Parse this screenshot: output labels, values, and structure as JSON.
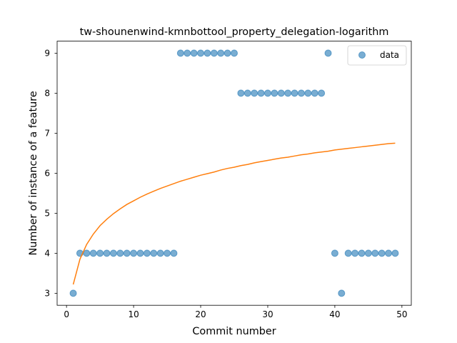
{
  "chart_data": {
    "type": "scatter",
    "title": "tw-shounenwind-kmnbottool_property_delegation-logarithm",
    "xlabel": "Commit number",
    "ylabel": "Number of instance of a feature",
    "xlim": [
      -1.4,
      51.4
    ],
    "ylim": [
      2.7,
      9.3
    ],
    "xticks": [
      0,
      10,
      20,
      30,
      40,
      50
    ],
    "yticks": [
      3,
      4,
      5,
      6,
      7,
      8,
      9
    ],
    "grid": false,
    "legend_position": "upper right",
    "series": [
      {
        "name": "data",
        "kind": "scatter",
        "color": "#1f77b4",
        "x": [
          1,
          2,
          3,
          4,
          5,
          6,
          7,
          8,
          9,
          10,
          11,
          12,
          13,
          14,
          15,
          16,
          17,
          18,
          19,
          20,
          21,
          22,
          23,
          24,
          25,
          26,
          27,
          28,
          29,
          30,
          31,
          32,
          33,
          34,
          35,
          36,
          37,
          38,
          39,
          40,
          41,
          42,
          43,
          44,
          45,
          46,
          47,
          48,
          49
        ],
        "y": [
          3,
          4,
          4,
          4,
          4,
          4,
          4,
          4,
          4,
          4,
          4,
          4,
          4,
          4,
          4,
          4,
          9,
          9,
          9,
          9,
          9,
          9,
          9,
          9,
          9,
          8,
          8,
          8,
          8,
          8,
          8,
          8,
          8,
          8,
          8,
          8,
          8,
          8,
          9,
          4,
          3,
          4,
          4,
          4,
          4,
          4,
          4,
          4,
          4
        ]
      },
      {
        "kind": "line",
        "color": "#ff7f0e",
        "x": [
          1,
          2,
          3,
          4,
          5,
          6,
          7,
          8,
          9,
          10,
          11,
          12,
          13,
          14,
          15,
          16,
          17,
          18,
          19,
          20,
          21,
          22,
          23,
          24,
          25,
          26,
          27,
          28,
          29,
          30,
          31,
          32,
          33,
          34,
          35,
          36,
          37,
          38,
          39,
          40,
          41,
          42,
          43,
          44,
          45,
          46,
          47,
          48,
          49
        ],
        "y": [
          3.22,
          3.85,
          4.22,
          4.48,
          4.69,
          4.85,
          4.99,
          5.11,
          5.22,
          5.31,
          5.4,
          5.48,
          5.55,
          5.62,
          5.68,
          5.74,
          5.8,
          5.85,
          5.9,
          5.95,
          5.99,
          6.03,
          6.08,
          6.12,
          6.15,
          6.19,
          6.22,
          6.26,
          6.29,
          6.32,
          6.35,
          6.38,
          6.4,
          6.43,
          6.46,
          6.48,
          6.51,
          6.53,
          6.55,
          6.58,
          6.6,
          6.62,
          6.64,
          6.66,
          6.68,
          6.7,
          6.72,
          6.74,
          6.75
        ]
      }
    ]
  }
}
